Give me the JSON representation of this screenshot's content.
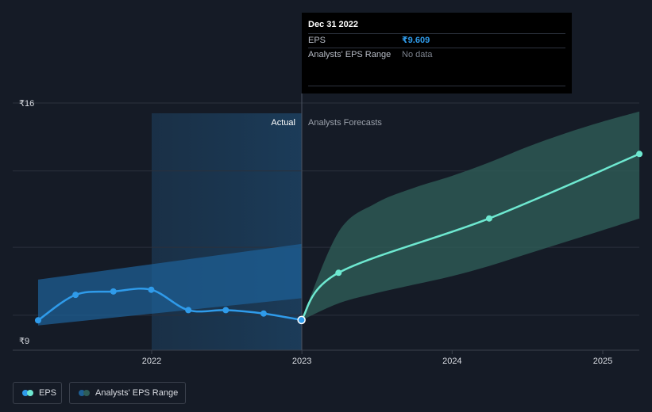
{
  "tooltip": {
    "date": "Dec 31 2022",
    "rows": [
      {
        "label": "EPS",
        "value": "₹9.609"
      },
      {
        "label": "Analysts' EPS Range",
        "value": "No data"
      }
    ]
  },
  "legend": {
    "eps_label": "EPS",
    "range_label": "Analysts' EPS Range"
  },
  "colors": {
    "background": "#151b26",
    "eps_actual": "#2f9bea",
    "eps_forecast": "#6ee8d0",
    "range_actual": "#1d5f94",
    "range_forecast": "#2e5d57"
  },
  "chart_data": {
    "type": "line",
    "divider_labels": {
      "actual": "Actual",
      "forecast": "Analysts Forecasts"
    },
    "y_tick_labels": [
      "₹16",
      "₹9"
    ],
    "ylim": [
      9,
      16
    ],
    "x_tick_labels": [
      "2022",
      "2023",
      "2024",
      "2025"
    ],
    "series": [
      {
        "name": "EPS",
        "segment": "actual",
        "x": [
          "2021-03-31",
          "2021-06-30",
          "2021-09-30",
          "2021-12-31",
          "2022-03-31",
          "2022-06-30",
          "2022-09-30",
          "2022-12-31"
        ],
        "y": [
          9.6,
          10.35,
          10.45,
          10.5,
          9.9,
          9.9,
          9.8,
          9.61
        ]
      },
      {
        "name": "EPS",
        "segment": "forecast",
        "x": [
          "2022-12-31",
          "2023-03-31",
          "2024-03-31",
          "2025-03-31"
        ],
        "y": [
          9.61,
          11.0,
          12.6,
          14.5
        ]
      },
      {
        "name": "Analysts' EPS Range",
        "segment": "actual",
        "x": [
          "2021-03-31",
          "2022-12-31"
        ],
        "low": [
          9.45,
          10.25
        ],
        "high": [
          10.8,
          11.85
        ]
      },
      {
        "name": "Analysts' EPS Range",
        "segment": "forecast",
        "x": [
          "2022-12-31",
          "2023-03-31",
          "2023-06-30",
          "2023-09-30",
          "2023-12-31",
          "2024-03-31",
          "2024-06-30",
          "2024-09-30",
          "2024-12-31",
          "2025-03-31"
        ],
        "low": [
          9.6,
          10.1,
          10.4,
          10.65,
          10.9,
          11.2,
          11.55,
          11.9,
          12.25,
          12.6
        ],
        "high": [
          9.6,
          12.2,
          13.05,
          13.5,
          13.85,
          14.25,
          14.7,
          15.1,
          15.45,
          15.75
        ]
      }
    ],
    "highlight_x": "2022-12-31",
    "grid": true
  }
}
